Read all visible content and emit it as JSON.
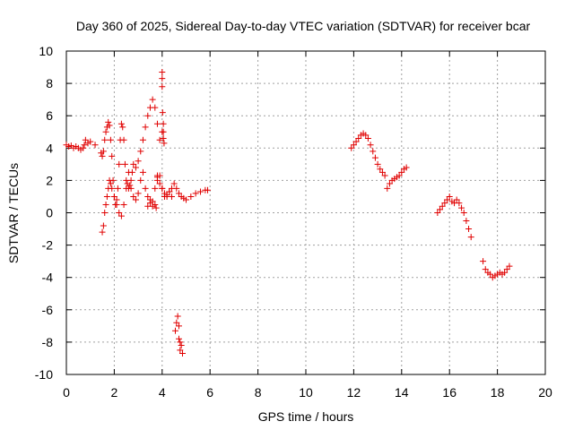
{
  "chart_data": {
    "type": "scatter",
    "title": "Day 360 of 2025, Sidereal Day-to-day VTEC variation (SDTVAR) for receiver bcar",
    "xlabel": "GPS time / hours",
    "ylabel": "SDTVAR / TECUs",
    "xlim": [
      0,
      20
    ],
    "ylim": [
      -10,
      10
    ],
    "xticks": [
      0,
      2,
      4,
      6,
      8,
      10,
      12,
      14,
      16,
      18,
      20
    ],
    "yticks": [
      -10,
      -8,
      -6,
      -4,
      -2,
      0,
      2,
      4,
      6,
      8,
      10
    ],
    "grid": true,
    "marker": "+",
    "color": "#e00000",
    "series": [
      {
        "name": "SDTVAR",
        "x": [
          0.0,
          0.1,
          0.2,
          0.3,
          0.4,
          0.5,
          0.6,
          0.7,
          0.75,
          0.8,
          0.9,
          1.0,
          1.2,
          1.45,
          1.5,
          1.55,
          1.6,
          1.65,
          1.7,
          1.75,
          1.8,
          1.85,
          1.9,
          1.95,
          2.0,
          2.05,
          2.1,
          2.15,
          2.2,
          2.25,
          2.3,
          2.35,
          2.4,
          2.45,
          2.5,
          2.55,
          2.6,
          2.65,
          2.7,
          2.75,
          2.8,
          2.9,
          3.0,
          3.1,
          3.2,
          3.3,
          3.4,
          3.5,
          3.6,
          3.7,
          3.8,
          3.9,
          4.0,
          1.5,
          1.55,
          1.6,
          1.65,
          1.7,
          1.75,
          1.8,
          1.85,
          1.9,
          2.0,
          2.1,
          2.2,
          2.3,
          2.4,
          2.5,
          2.6,
          2.7,
          2.8,
          2.9,
          3.0,
          3.1,
          3.2,
          3.3,
          3.4,
          3.5,
          3.6,
          3.7,
          3.8,
          3.8,
          3.9,
          4.0,
          4.1,
          4.2,
          4.3,
          4.4,
          4.5,
          4.6,
          4.7,
          4.8,
          4.9,
          5.0,
          5.2,
          5.4,
          5.6,
          5.8,
          5.9,
          3.4,
          3.5,
          3.6,
          3.7,
          3.75,
          3.8,
          3.9,
          4.0,
          4.1,
          4.2,
          4.3,
          4.4,
          4.0,
          4.0,
          4.0,
          4.02,
          4.05,
          4.05,
          4.05,
          4.08,
          4.55,
          4.6,
          4.65,
          4.7,
          4.7,
          4.75,
          4.75,
          4.8,
          4.85,
          11.9,
          12.0,
          12.1,
          12.2,
          12.3,
          12.4,
          12.5,
          12.6,
          12.7,
          12.8,
          12.9,
          13.0,
          13.1,
          13.2,
          13.3,
          13.4,
          13.5,
          13.6,
          13.7,
          13.8,
          13.9,
          14.0,
          14.1,
          14.2,
          15.5,
          15.6,
          15.7,
          15.8,
          15.9,
          16.0,
          16.1,
          16.2,
          16.3,
          16.4,
          16.5,
          16.6,
          16.7,
          16.8,
          16.9,
          17.4,
          17.5,
          17.6,
          17.7,
          17.8,
          17.9,
          18.0,
          18.1,
          18.2,
          18.3,
          18.4,
          18.5
        ],
        "y": [
          4.2,
          4.1,
          4.15,
          4.0,
          4.1,
          4.0,
          3.9,
          4.0,
          4.2,
          4.5,
          4.3,
          4.4,
          4.2,
          3.7,
          3.5,
          3.8,
          4.5,
          5.0,
          5.3,
          5.6,
          5.4,
          4.5,
          3.5,
          2.0,
          1.0,
          0.5,
          0.8,
          1.5,
          3.0,
          4.5,
          5.5,
          5.3,
          4.5,
          3.0,
          2.0,
          1.8,
          1.5,
          1.7,
          2.0,
          2.5,
          3.0,
          2.8,
          3.2,
          3.8,
          4.5,
          5.3,
          6.0,
          6.5,
          7.0,
          6.5,
          5.5,
          4.5,
          5.0,
          -1.2,
          -0.8,
          0.0,
          0.5,
          1.0,
          1.5,
          2.0,
          1.8,
          1.5,
          1.0,
          0.5,
          0.0,
          -0.2,
          0.5,
          1.5,
          2.5,
          1.5,
          1.0,
          0.8,
          1.2,
          2.0,
          2.5,
          1.5,
          1.0,
          0.6,
          0.4,
          1.5,
          2.2,
          2.3,
          1.8,
          1.5,
          1.2,
          1.0,
          1.3,
          1.5,
          1.8,
          1.5,
          1.2,
          1.0,
          0.9,
          0.8,
          1.0,
          1.2,
          1.3,
          1.4,
          1.4,
          0.4,
          0.8,
          0.7,
          0.5,
          0.3,
          2.0,
          2.3,
          1.5,
          1.0,
          1.1,
          1.3,
          1.0,
          8.7,
          8.3,
          7.8,
          6.2,
          5.5,
          5.0,
          4.6,
          4.3,
          -7.3,
          -6.8,
          -6.4,
          -7.0,
          -7.8,
          -8.0,
          -8.5,
          -8.2,
          -8.7,
          4.0,
          4.2,
          4.4,
          4.6,
          4.8,
          4.9,
          4.8,
          4.6,
          4.2,
          3.8,
          3.4,
          3.0,
          2.7,
          2.5,
          2.3,
          1.5,
          1.8,
          2.0,
          2.1,
          2.2,
          2.3,
          2.5,
          2.7,
          2.8,
          0.0,
          0.2,
          0.4,
          0.6,
          0.8,
          1.0,
          0.7,
          0.6,
          0.8,
          0.6,
          0.3,
          0.0,
          -0.5,
          -1.0,
          -1.5,
          -3.0,
          -3.5,
          -3.7,
          -3.8,
          -4.0,
          -3.9,
          -3.8,
          -3.7,
          -3.8,
          -3.7,
          -3.5,
          -3.3
        ]
      }
    ]
  }
}
